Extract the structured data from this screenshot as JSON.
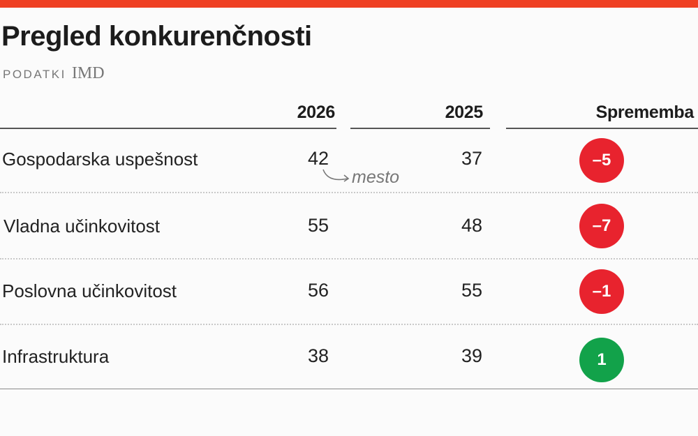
{
  "header": {
    "title": "Pregled konkurenčnosti",
    "source_label": "PODATKI",
    "source_name": "IMD"
  },
  "columns": {
    "year_2026": "2026",
    "year_2025": "2025",
    "change": "Sprememba"
  },
  "annotation": "mesto",
  "colors": {
    "accent": "#ef4023",
    "negative": "#e8232e",
    "positive": "#12a24a"
  },
  "chart_data": {
    "type": "table",
    "title": "Pregled konkurenčnosti",
    "source": "PODATKI IMD",
    "columns": [
      "2026",
      "2025",
      "Sprememba"
    ],
    "rows": [
      {
        "label": "Gospodarska uspešnost",
        "v2026": "42",
        "v2025": "37",
        "change": "–5",
        "change_value": -5
      },
      {
        "label": "Vladna učinkovitost",
        "v2026": "55",
        "v2025": "48",
        "change": "–7",
        "change_value": -7
      },
      {
        "label": "Poslovna učinkovitost",
        "v2026": "56",
        "v2025": "55",
        "change": "–1",
        "change_value": -1
      },
      {
        "label": "Infrastruktura",
        "v2026": "38",
        "v2025": "39",
        "change": "1",
        "change_value": 1
      }
    ]
  }
}
